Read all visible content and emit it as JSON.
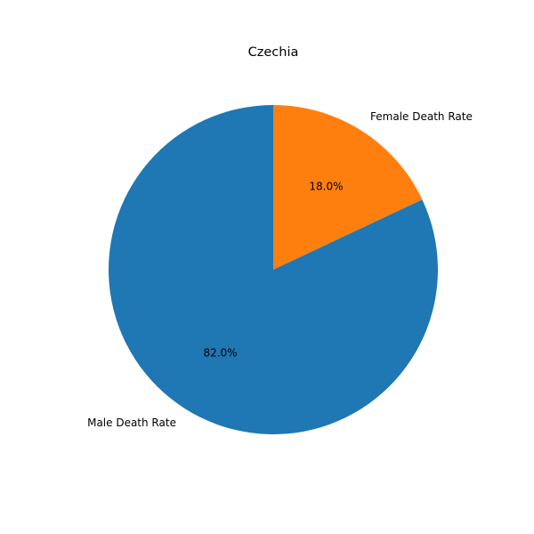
{
  "chart_data": {
    "type": "pie",
    "title": "Czechia",
    "slices": [
      {
        "label": "Female Death Rate",
        "value": 18.0,
        "pct_label": "18.0%",
        "color": "#ff7f0e"
      },
      {
        "label": "Male Death Rate",
        "value": 82.0,
        "pct_label": "82.0%",
        "color": "#1f77b4"
      }
    ],
    "start_angle": "top",
    "direction": "clockwise"
  }
}
